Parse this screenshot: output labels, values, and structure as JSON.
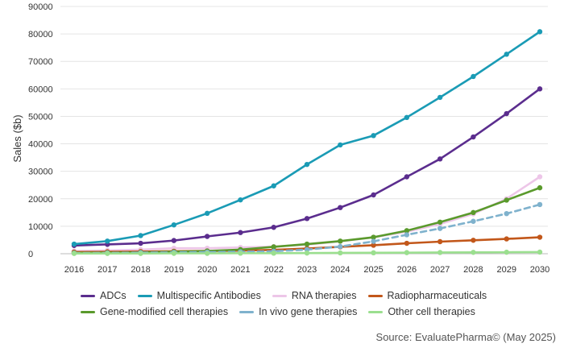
{
  "chart_data": {
    "type": "line",
    "ylabel": "Sales ($b)",
    "ylim": [
      0,
      90000
    ],
    "yticks": [
      "0",
      "10000",
      "20000",
      "30000",
      "40000",
      "50000",
      "60000",
      "70000",
      "80000",
      "90000"
    ],
    "x": [
      "2016",
      "2017",
      "2018",
      "2019",
      "2020",
      "2021",
      "2022",
      "2023",
      "2024",
      "2025",
      "2026",
      "2027",
      "2028",
      "2029",
      "2030"
    ],
    "grid": "horizontal",
    "legend_placement": "bottom",
    "series": [
      {
        "name": "ADCs",
        "color": "#5b2d8e",
        "dashed": false,
        "values": [
          3000,
          3400,
          3800,
          4800,
          6300,
          7700,
          9600,
          12800,
          16800,
          21400,
          28000,
          34500,
          42500,
          51000,
          60000
        ]
      },
      {
        "name": "Multispecific Antibodies",
        "color": "#1a9bb5",
        "dashed": false,
        "values": [
          3500,
          4600,
          6600,
          10500,
          14700,
          19600,
          24700,
          32500,
          39600,
          43000,
          49600,
          56900,
          64500,
          72600,
          80800
        ]
      },
      {
        "name": "RNA therapies",
        "color": "#edc6e8",
        "dashed": false,
        "values": [
          1000,
          1200,
          1500,
          2000,
          2000,
          2300,
          2600,
          3300,
          4500,
          6000,
          8000,
          10800,
          14500,
          20000,
          28000
        ]
      },
      {
        "name": "Radiopharmaceuticals",
        "color": "#c2571a",
        "dashed": false,
        "values": [
          600,
          700,
          800,
          900,
          1000,
          1100,
          1400,
          1900,
          2500,
          3100,
          3800,
          4400,
          4900,
          5400,
          6000
        ]
      },
      {
        "name": "Gene-modified cell therapies",
        "color": "#5a9a2c",
        "dashed": false,
        "values": [
          300,
          400,
          500,
          700,
          1000,
          1500,
          2500,
          3500,
          4600,
          6000,
          8400,
          11500,
          15000,
          19500,
          24000
        ]
      },
      {
        "name": "In vivo gene therapies",
        "color": "#7fb2cd",
        "dashed": true,
        "values": [
          200,
          300,
          400,
          500,
          600,
          700,
          900,
          1500,
          2600,
          4500,
          6900,
          9200,
          11800,
          14600,
          17900
        ]
      },
      {
        "name": "Other cell therapies",
        "color": "#9bdf8f",
        "dashed": false,
        "values": [
          100,
          100,
          100,
          150,
          150,
          200,
          200,
          250,
          300,
          350,
          400,
          450,
          500,
          550,
          600
        ]
      }
    ]
  },
  "source": "Source: EvaluatePharma© (May 2025)"
}
